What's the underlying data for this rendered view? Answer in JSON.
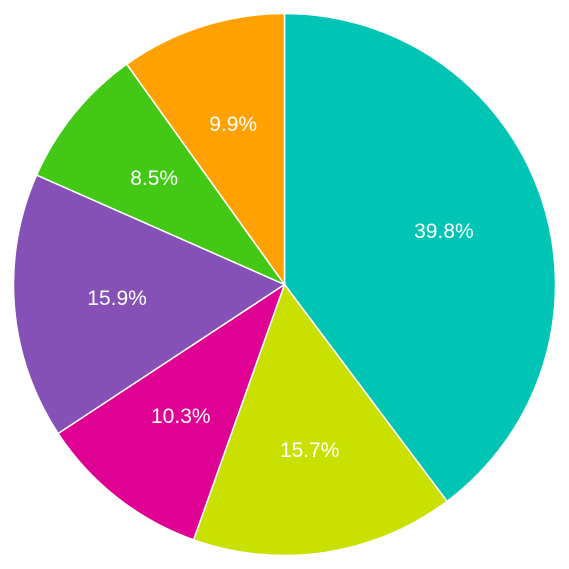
{
  "chart_data": {
    "type": "pie",
    "start": "top",
    "direction": "clockwise",
    "legend": "none",
    "slices": [
      {
        "label": "39.8%",
        "value": 39.8,
        "color": "#00c5b5"
      },
      {
        "label": "15.7%",
        "value": 15.7,
        "color": "#c9e000"
      },
      {
        "label": "10.3%",
        "value": 10.3,
        "color": "#df0094"
      },
      {
        "label": "15.9%",
        "value": 15.9,
        "color": "#8551b6"
      },
      {
        "label": "8.5%",
        "value": 8.5,
        "color": "#43c915"
      },
      {
        "label": "9.9%",
        "value": 9.9,
        "color": "#ffa201"
      }
    ]
  }
}
